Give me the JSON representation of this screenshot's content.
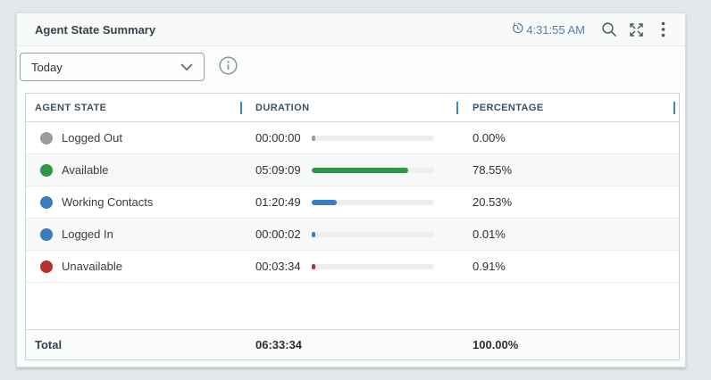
{
  "widget": {
    "title": "Agent State Summary",
    "last_refresh_time": "4:31:55 AM",
    "filter_dropdown": {
      "selected": "Today"
    },
    "icons": {
      "history_clock": "history-clock-icon",
      "search": "search-icon",
      "expand": "expand-fullscreen-icon",
      "kebab": "kebab-menu-icon",
      "info": "info-icon",
      "chevron": "chevron-down-icon"
    },
    "colors": {
      "timestamp_blue": "#4a80c0",
      "column_separator_blue": "#3e86c0",
      "icon_gray": "#4e5963"
    }
  },
  "table": {
    "columns": [
      {
        "label": "AGENT STATE"
      },
      {
        "label": "DURATION"
      },
      {
        "label": "PERCENTAGE"
      }
    ],
    "rows": [
      {
        "state": "Logged Out",
        "color": "#9b9b9b",
        "duration": "00:00:00",
        "percentage": "0.00%",
        "percent_value": 0.0
      },
      {
        "state": "Available",
        "color": "#2e9744",
        "duration": "05:09:09",
        "percentage": "78.55%",
        "percent_value": 78.55
      },
      {
        "state": "Working Contacts",
        "color": "#377dbf",
        "duration": "01:20:49",
        "percentage": "20.53%",
        "percent_value": 20.53
      },
      {
        "state": "Logged In",
        "color": "#377dbf",
        "duration": "00:00:02",
        "percentage": "0.01%",
        "percent_value": 0.01
      },
      {
        "state": "Unavailable",
        "color": "#b43230",
        "duration": "00:03:34",
        "percentage": "0.91%",
        "percent_value": 0.91
      }
    ],
    "total": {
      "label": "Total",
      "duration": "06:33:34",
      "percentage": "100.00%"
    }
  }
}
